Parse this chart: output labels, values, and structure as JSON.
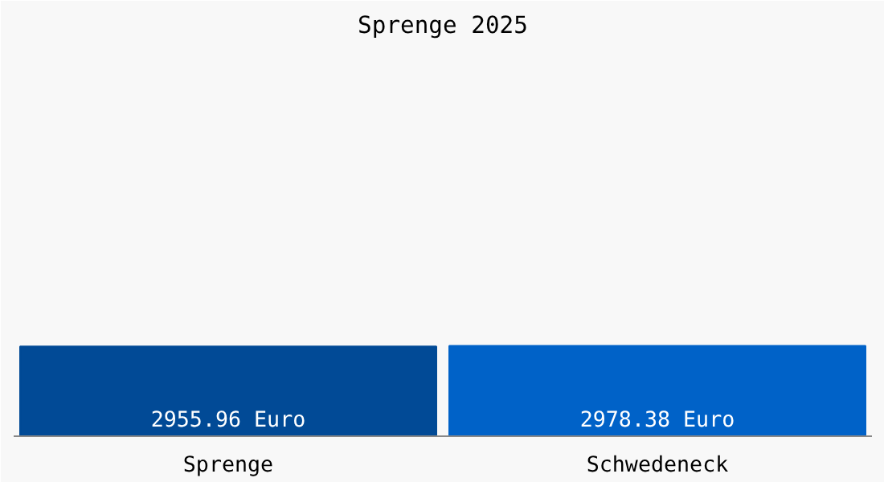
{
  "chart_data": {
    "type": "bar",
    "title": "Sprenge 2025",
    "categories": [
      "Sprenge",
      "Schwedeneck"
    ],
    "values": [
      2955.96,
      2978.38
    ],
    "colors": [
      "#014a96",
      "#0062c8"
    ],
    "value_labels": [
      "2955.96 Euro",
      "2978.38 Euro"
    ],
    "grid": false
  }
}
